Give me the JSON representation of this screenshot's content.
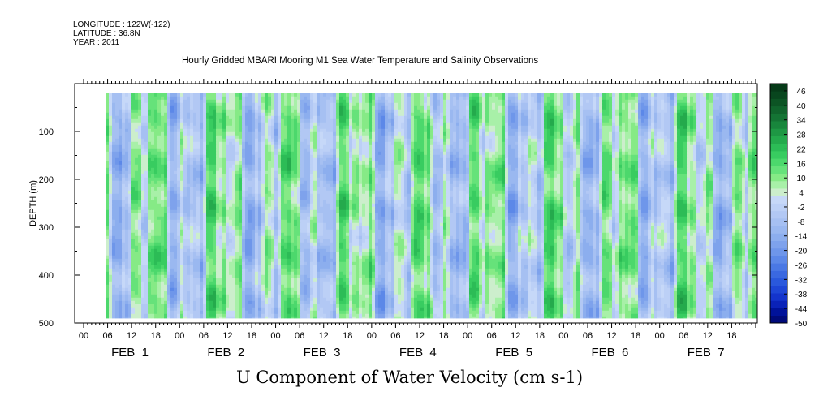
{
  "header": {
    "longitude": "LONGITUDE : 122W(-122)",
    "latitude": "LATITUDE : 36.8N",
    "year": "YEAR : 2011",
    "title": "Hourly Gridded MBARI Mooring M1 Sea Water Temperature and Salinity Observations"
  },
  "chart_data": {
    "type": "heatmap",
    "title": "U Component of Water Velocity (cm s-1)",
    "ylabel": "DEPTH (m)",
    "xlabel": "",
    "x_hour_ticks": [
      "00",
      "06",
      "12",
      "18",
      "00",
      "06",
      "12",
      "18",
      "00",
      "06",
      "12",
      "18",
      "00",
      "06",
      "12",
      "18",
      "00",
      "06",
      "12",
      "18",
      "00",
      "06",
      "12",
      "18",
      "00",
      "06",
      "12",
      "18"
    ],
    "x_day_labels": [
      "FEB  1",
      "FEB  2",
      "FEB  3",
      "FEB  4",
      "FEB  5",
      "FEB  6",
      "FEB  7"
    ],
    "y_ticks": [
      100,
      200,
      300,
      400,
      500
    ],
    "ylim": [
      0,
      500
    ],
    "y_reversed": true,
    "data_depth_range": [
      20,
      490
    ],
    "colorbar": {
      "ticks": [
        "46",
        "40",
        "34",
        "28",
        "22",
        "16",
        "10",
        "4",
        "-2",
        "-8",
        "-14",
        "-20",
        "-26",
        "-32",
        "-38",
        "-44",
        "-50"
      ],
      "levels": [
        -50,
        -47,
        -44,
        -41,
        -38,
        -35,
        -32,
        -29,
        -26,
        -23,
        -20,
        -17,
        -14,
        -11,
        -8,
        -5,
        -2,
        1,
        4,
        7,
        10,
        13,
        16,
        19,
        22,
        25,
        28,
        31,
        34,
        37,
        40,
        43,
        46,
        49
      ],
      "colors": [
        "#000a7a",
        "#00129a",
        "#0a22b8",
        "#1434cc",
        "#1e46d6",
        "#2a58dc",
        "#3a68e0",
        "#4a78e4",
        "#5c88e8",
        "#6e96ea",
        "#7ea2ec",
        "#8caeee",
        "#9ab8f0",
        "#a6c0f2",
        "#b2c8f4",
        "#bcd0f6",
        "#c6d8f8",
        "#cceecc",
        "#a8f0a8",
        "#86ea86",
        "#66e27a",
        "#4cd86c",
        "#38cc60",
        "#2cbc56",
        "#24aa4c",
        "#1e9844",
        "#18863c",
        "#147434",
        "#10642c",
        "#0c5424",
        "#08461e",
        "#063a18"
      ]
    }
  }
}
